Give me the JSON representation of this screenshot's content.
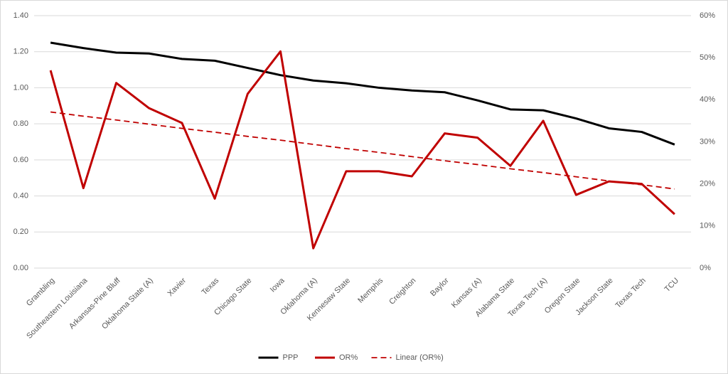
{
  "chart_data": {
    "type": "line",
    "categories": [
      "Grambling",
      "Southeastern Louisiana",
      "Arkansas-Pine Bluff",
      "Oklahoma State (A)",
      "Xavier",
      "Texas",
      "Chicago State",
      "Iowa",
      "Oklahoma (A)",
      "Kennesaw State",
      "Memphis",
      "Creighton",
      "Baylor",
      "Kansas (A)",
      "Alabama State",
      "Texas Tech (A)",
      "Oregon State",
      "Jackson State",
      "Texas Tech",
      "TCU"
    ],
    "series": [
      {
        "name": "PPP",
        "color": "#000000",
        "values": [
          1.25,
          1.22,
          1.195,
          1.19,
          1.16,
          1.15,
          1.11,
          1.07,
          1.04,
          1.025,
          1.0,
          0.985,
          0.975,
          0.93,
          0.88,
          0.875,
          0.83,
          0.775,
          0.755,
          0.685
        ]
      },
      {
        "name": "OR%",
        "color": "#c00000",
        "axis": "y2",
        "values": [
          47,
          19,
          44,
          38,
          34.5,
          16.5,
          41.4,
          51.5,
          4.7,
          23,
          23,
          21.8,
          32,
          31,
          24.3,
          35,
          17.4,
          20.6,
          20,
          12.8
        ]
      },
      {
        "name": "Linear (OR%)",
        "color": "#c00000",
        "axis": "y2",
        "dashed": true,
        "values": [
          37.1,
          36.1,
          35.2,
          34.2,
          33.2,
          32.3,
          31.3,
          30.4,
          29.4,
          28.4,
          27.5,
          26.5,
          25.5,
          24.6,
          23.6,
          22.7,
          21.7,
          20.7,
          19.8,
          18.8
        ]
      }
    ],
    "ylim": [
      0,
      1.4
    ],
    "yticks": [
      {
        "value": 0,
        "label": "0.00"
      },
      {
        "value": 0.2,
        "label": "0.20"
      },
      {
        "value": 0.4,
        "label": "0.40"
      },
      {
        "value": 0.6,
        "label": "0.60"
      },
      {
        "value": 0.8,
        "label": "0.80"
      },
      {
        "value": 1.0,
        "label": "1.00"
      },
      {
        "value": 1.2,
        "label": "1.20"
      },
      {
        "value": 1.4,
        "label": "1.40"
      }
    ],
    "y2lim": [
      0,
      60
    ],
    "y2ticks": [
      {
        "value": 0,
        "label": "0%"
      },
      {
        "value": 10,
        "label": "10%"
      },
      {
        "value": 20,
        "label": "20%"
      },
      {
        "value": 30,
        "label": "30%"
      },
      {
        "value": 40,
        "label": "40%"
      },
      {
        "value": 50,
        "label": "50%"
      },
      {
        "value": 60,
        "label": "60%"
      }
    ],
    "grid": true,
    "legend": "bottom"
  }
}
